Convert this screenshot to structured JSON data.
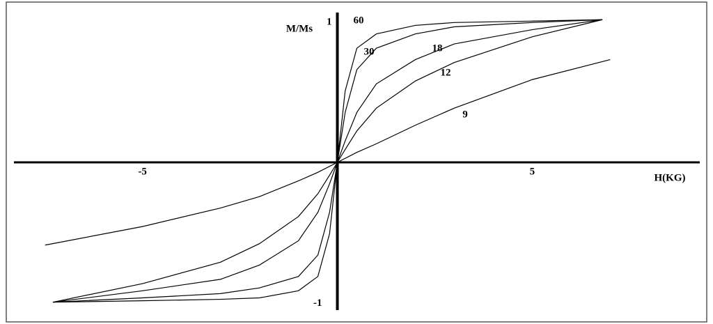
{
  "chart_data": {
    "type": "line",
    "x_label": "H(KG)",
    "y_label": "M/Ms",
    "xlim": [
      -8.3,
      9.3
    ],
    "ylim": [
      -1.05,
      1.05
    ],
    "xticks": [
      -5,
      5
    ],
    "yticks": [
      -1,
      1
    ],
    "series": [
      {
        "name": "60",
        "color": "#000000",
        "x": [
          -7.3,
          -5,
          -3,
          -2,
          -1,
          -0.5,
          -0.2,
          0,
          0.2,
          0.5,
          1,
          2,
          3,
          5,
          6.8
        ],
        "values": [
          -0.98,
          -0.97,
          -0.96,
          -0.95,
          -0.9,
          -0.8,
          -0.5,
          0,
          0.5,
          0.8,
          0.9,
          0.96,
          0.98,
          0.99,
          1.0
        ]
      },
      {
        "name": "30",
        "color": "#000000",
        "x": [
          -7.3,
          -5,
          -3,
          -2,
          -1,
          -0.5,
          -0.2,
          0,
          0.2,
          0.5,
          1,
          2,
          3,
          5,
          6.8
        ],
        "values": [
          -0.98,
          -0.95,
          -0.92,
          -0.88,
          -0.8,
          -0.65,
          -0.35,
          0,
          0.35,
          0.65,
          0.8,
          0.9,
          0.95,
          0.98,
          1.0
        ]
      },
      {
        "name": "18",
        "color": "#000000",
        "x": [
          -7.3,
          -5,
          -3,
          -2,
          -1,
          -0.5,
          -0.2,
          0,
          0.2,
          0.5,
          1,
          2,
          3,
          5,
          6.8
        ],
        "values": [
          -0.98,
          -0.9,
          -0.82,
          -0.72,
          -0.55,
          -0.35,
          -0.15,
          0,
          0.15,
          0.35,
          0.55,
          0.72,
          0.83,
          0.93,
          1.0
        ]
      },
      {
        "name": "12",
        "color": "#000000",
        "x": [
          -7.3,
          -5,
          -3,
          -2,
          -1,
          -0.5,
          -0.2,
          0,
          0.2,
          0.5,
          1,
          2,
          3,
          5,
          6.8
        ],
        "values": [
          -0.98,
          -0.85,
          -0.7,
          -0.57,
          -0.38,
          -0.22,
          -0.09,
          0,
          0.09,
          0.22,
          0.38,
          0.57,
          0.7,
          0.88,
          1.0
        ]
      },
      {
        "name": "9",
        "color": "#000000",
        "x": [
          -7.5,
          -5,
          -3,
          -2,
          -1,
          -0.5,
          0,
          0.5,
          1,
          2,
          3,
          5,
          7
        ],
        "values": [
          -0.58,
          -0.45,
          -0.32,
          -0.24,
          -0.13,
          -0.07,
          0,
          0.07,
          0.13,
          0.26,
          0.38,
          0.58,
          0.72
        ]
      }
    ]
  }
}
